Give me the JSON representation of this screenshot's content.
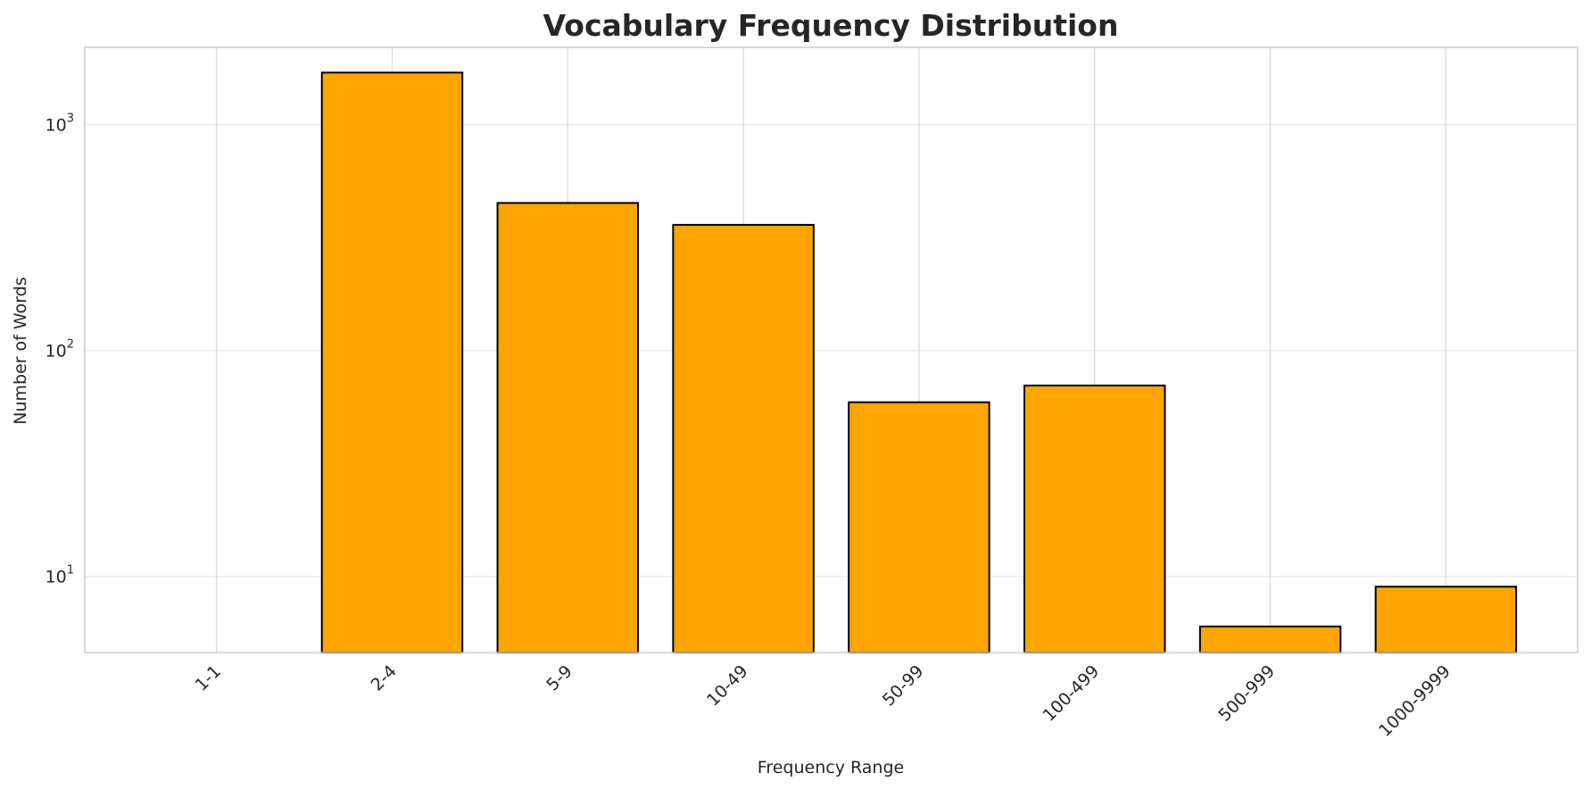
{
  "chart_data": {
    "type": "bar",
    "title": "Vocabulary Frequency Distribution",
    "xlabel": "Frequency Range",
    "ylabel": "Number of Words",
    "y_scale": "log",
    "ylim": [
      4.6,
      2200
    ],
    "y_ticks": [
      {
        "base": "10",
        "exp": "1",
        "value": 10
      },
      {
        "base": "10",
        "exp": "2",
        "value": 100
      },
      {
        "base": "10",
        "exp": "3",
        "value": 1000
      }
    ],
    "categories": [
      "1-1",
      "2-4",
      "5-9",
      "10-49",
      "50-99",
      "100-499",
      "500-999",
      "1000-9999"
    ],
    "values": [
      0,
      1700,
      450,
      360,
      59,
      70,
      6,
      9
    ],
    "bar_color": "#FFA500",
    "edge_color": "#000000",
    "grid": true,
    "legend": null
  }
}
